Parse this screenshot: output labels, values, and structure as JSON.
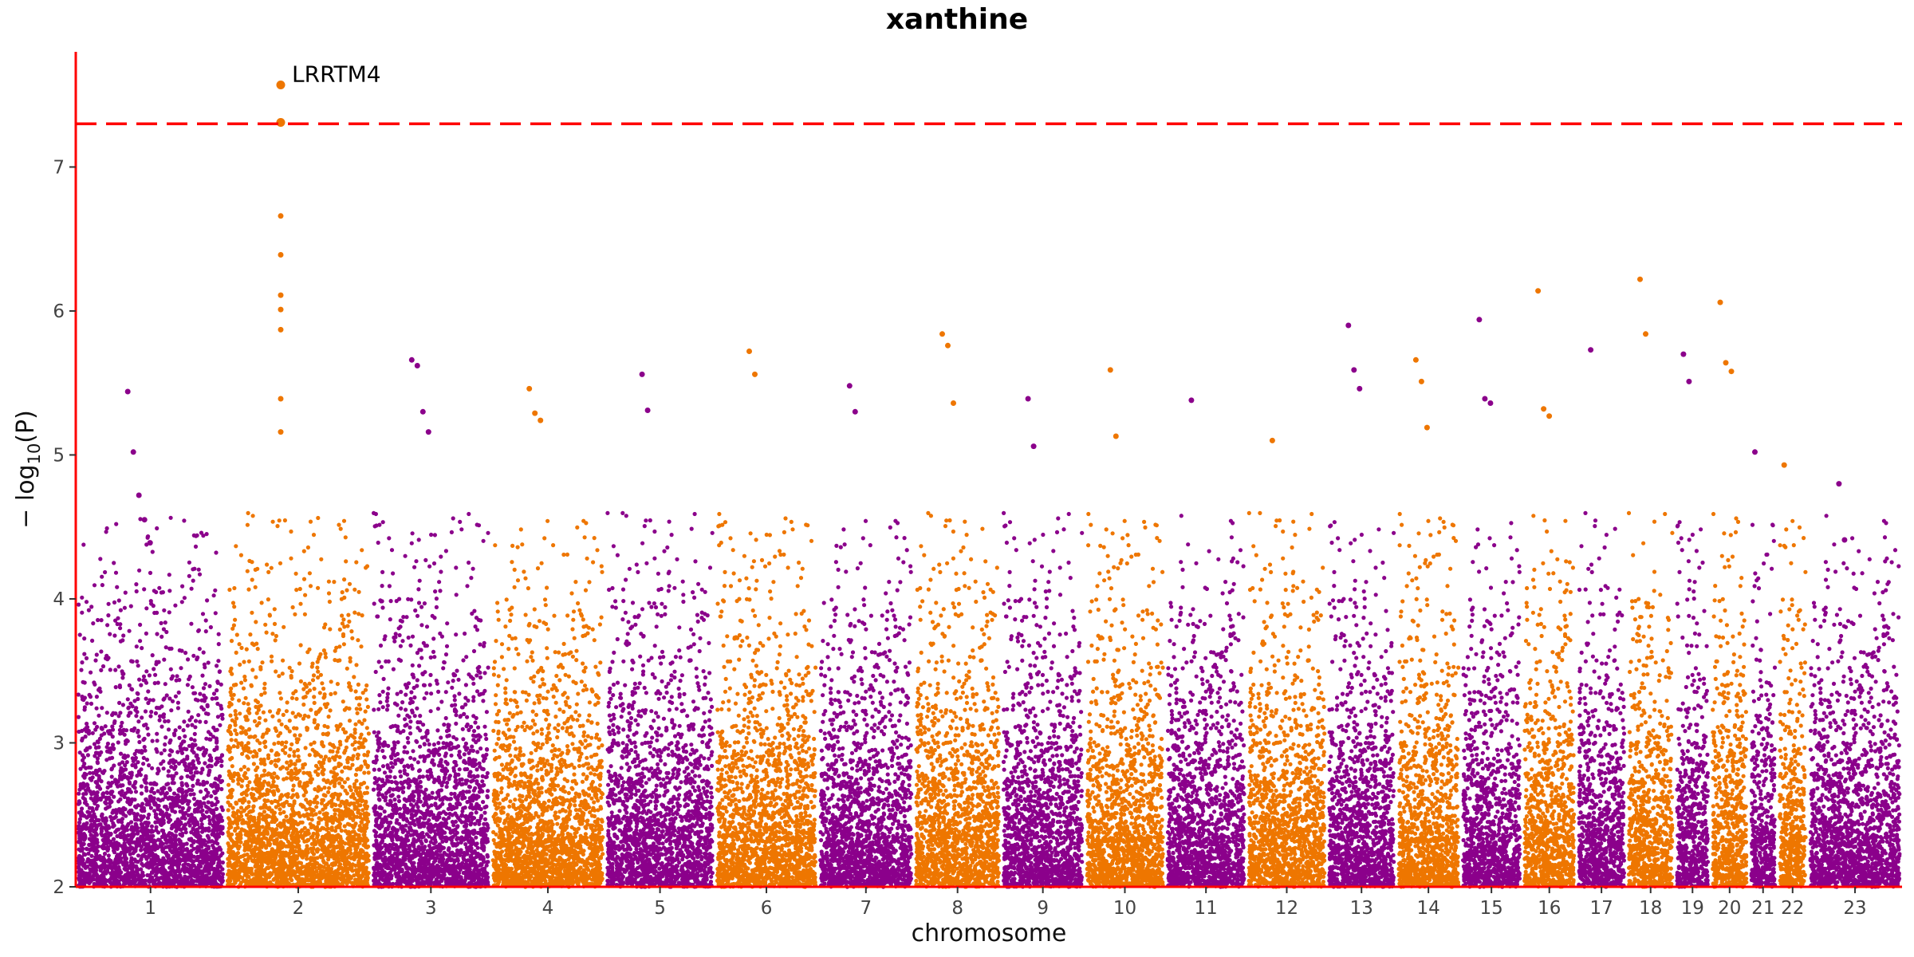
{
  "chart_data": {
    "type": "scatter",
    "title": "xanthine",
    "xlabel": "chromosome",
    "ylabel_main": "− log",
    "ylabel_sub": "10",
    "ylabel_var": "(P)",
    "ylim": [
      2,
      7.8
    ],
    "yticks": [
      "2",
      "3",
      "4",
      "5",
      "6",
      "7"
    ],
    "threshold": 7.3,
    "colors": {
      "odd": "#8B008B",
      "even": "#EE7600",
      "threshold": "#FF0000",
      "axis": "#FF0000"
    },
    "chromosomes": [
      {
        "label": "1",
        "start": 0,
        "end": 248
      },
      {
        "label": "2",
        "start": 248,
        "end": 490
      },
      {
        "label": "3",
        "start": 490,
        "end": 688
      },
      {
        "label": "4",
        "start": 688,
        "end": 878
      },
      {
        "label": "5",
        "start": 878,
        "end": 1060
      },
      {
        "label": "6",
        "start": 1060,
        "end": 1231
      },
      {
        "label": "7",
        "start": 1231,
        "end": 1390
      },
      {
        "label": "8",
        "start": 1390,
        "end": 1535
      },
      {
        "label": "9",
        "start": 1535,
        "end": 1673
      },
      {
        "label": "10",
        "start": 1673,
        "end": 1807
      },
      {
        "label": "11",
        "start": 1807,
        "end": 1942
      },
      {
        "label": "12",
        "start": 1942,
        "end": 2075
      },
      {
        "label": "13",
        "start": 2075,
        "end": 2190
      },
      {
        "label": "14",
        "start": 2190,
        "end": 2297
      },
      {
        "label": "15",
        "start": 2297,
        "end": 2399
      },
      {
        "label": "16",
        "start": 2399,
        "end": 2489
      },
      {
        "label": "17",
        "start": 2489,
        "end": 2572
      },
      {
        "label": "18",
        "start": 2572,
        "end": 2652
      },
      {
        "label": "19",
        "start": 2652,
        "end": 2711
      },
      {
        "label": "20",
        "start": 2711,
        "end": 2775
      },
      {
        "label": "21",
        "start": 2775,
        "end": 2822
      },
      {
        "label": "22",
        "start": 2822,
        "end": 2873
      },
      {
        "label": "23",
        "start": 2873,
        "end": 3029
      }
    ],
    "peaks": [
      {
        "chr": "1",
        "values": [
          5.44,
          5.02,
          4.72,
          4.55,
          4.39
        ]
      },
      {
        "chr": "2",
        "values": [
          7.57,
          7.31,
          6.66,
          6.39,
          6.11,
          6.01,
          5.87,
          5.39,
          5.16
        ]
      },
      {
        "chr": "3",
        "values": [
          5.66,
          5.62,
          5.3,
          5.16
        ]
      },
      {
        "chr": "4",
        "values": [
          5.46,
          5.29,
          5.24
        ]
      },
      {
        "chr": "5",
        "values": [
          5.56,
          5.31
        ]
      },
      {
        "chr": "6",
        "values": [
          5.72,
          5.56
        ]
      },
      {
        "chr": "7",
        "values": [
          5.48,
          5.3
        ]
      },
      {
        "chr": "8",
        "values": [
          5.84,
          5.76,
          5.36
        ]
      },
      {
        "chr": "9",
        "values": [
          5.39,
          5.06
        ]
      },
      {
        "chr": "10",
        "values": [
          5.59,
          5.13
        ]
      },
      {
        "chr": "11",
        "values": [
          5.38
        ]
      },
      {
        "chr": "12",
        "values": [
          5.1
        ]
      },
      {
        "chr": "13",
        "values": [
          5.9,
          5.59,
          5.46
        ]
      },
      {
        "chr": "14",
        "values": [
          5.66,
          5.51,
          5.19
        ]
      },
      {
        "chr": "15",
        "values": [
          5.94,
          5.39,
          5.36
        ]
      },
      {
        "chr": "16",
        "values": [
          6.14,
          5.32,
          5.27
        ]
      },
      {
        "chr": "17",
        "values": [
          5.73
        ]
      },
      {
        "chr": "18",
        "values": [
          6.22,
          5.84
        ]
      },
      {
        "chr": "19",
        "values": [
          5.7,
          5.51
        ]
      },
      {
        "chr": "20",
        "values": [
          6.06,
          5.64,
          5.58
        ]
      },
      {
        "chr": "21",
        "values": [
          5.02
        ]
      },
      {
        "chr": "22",
        "values": [
          4.93
        ]
      },
      {
        "chr": "23",
        "values": [
          4.8,
          4.41
        ]
      }
    ],
    "annotations": [
      {
        "label": "LRRTM4",
        "chr": "2",
        "value": 7.57
      }
    ]
  }
}
